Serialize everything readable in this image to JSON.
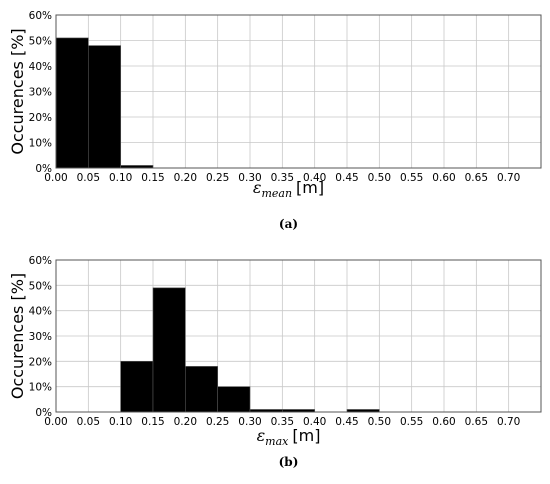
{
  "chart_data": [
    {
      "type": "bar",
      "ylabel": "Occurences [%]",
      "xlabel": {
        "symbol": "ε",
        "subscript": "mean",
        "unit": "[m]"
      },
      "caption": "(a)",
      "x_ticks": [
        "0.00",
        "0.05",
        "0.10",
        "0.15",
        "0.20",
        "0.25",
        "0.30",
        "0.35",
        "0.40",
        "0.45",
        "0.50",
        "0.55",
        "0.60",
        "0.65",
        "0.70"
      ],
      "y_ticks": [
        "0%",
        "10%",
        "20%",
        "30%",
        "40%",
        "50%",
        "60%"
      ],
      "xlim": [
        0,
        0.75
      ],
      "ylim": [
        0,
        60
      ],
      "grid": true,
      "bin_width": 0.05,
      "bins": [
        {
          "start": 0.0,
          "value": 51
        },
        {
          "start": 0.05,
          "value": 48
        },
        {
          "start": 0.1,
          "value": 1
        }
      ]
    },
    {
      "type": "bar",
      "ylabel": "Occurences [%]",
      "xlabel": {
        "symbol": "ε",
        "subscript": "max",
        "unit": "[m]"
      },
      "caption": "(b)",
      "x_ticks": [
        "0.00",
        "0.05",
        "0.10",
        "0.15",
        "0.20",
        "0.25",
        "0.30",
        "0.35",
        "0.40",
        "0.45",
        "0.50",
        "0.55",
        "0.60",
        "0.65",
        "0.70"
      ],
      "y_ticks": [
        "0%",
        "10%",
        "20%",
        "30%",
        "40%",
        "50%",
        "60%"
      ],
      "xlim": [
        0,
        0.75
      ],
      "ylim": [
        0,
        60
      ],
      "grid": true,
      "bin_width": 0.05,
      "bins": [
        {
          "start": 0.1,
          "value": 20
        },
        {
          "start": 0.15,
          "value": 49
        },
        {
          "start": 0.2,
          "value": 18
        },
        {
          "start": 0.25,
          "value": 10
        },
        {
          "start": 0.3,
          "value": 1
        },
        {
          "start": 0.35,
          "value": 1
        },
        {
          "start": 0.45,
          "value": 1
        }
      ]
    }
  ]
}
